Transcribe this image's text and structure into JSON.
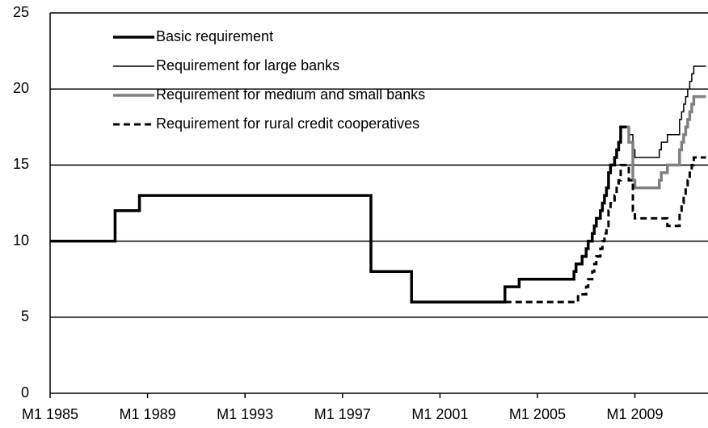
{
  "chart_data": {
    "type": "line",
    "step": true,
    "xlim": [
      "M1 1985",
      "M12 2011"
    ],
    "xticks": [
      "M1 1985",
      "M1 1989",
      "M1 1993",
      "M1 1997",
      "M1 2001",
      "M1 2005",
      "M1 2009"
    ],
    "ylim": [
      0,
      25
    ],
    "yticks": [
      0,
      5,
      10,
      15,
      20,
      25
    ],
    "grid": true,
    "legend": "top-left",
    "series": [
      {
        "name": "Basic requirement",
        "color": "#000000",
        "width": 3.5,
        "dash": "none",
        "x": [
          "M1 1985",
          "M9 1987",
          "M9 1988",
          "M3 1998",
          "M11 1999",
          "M9 2003",
          "M4 2004",
          "M7 2006",
          "M8 2006",
          "M11 2006",
          "M1 2007",
          "M2 2007",
          "M4 2007",
          "M5 2007",
          "M6 2007",
          "M8 2007",
          "M9 2007",
          "M10 2007",
          "M11 2007",
          "M12 2007",
          "M1 2008",
          "M3 2008",
          "M4 2008",
          "M5 2008",
          "M6 2008",
          "M9 2008"
        ],
        "values": [
          10,
          12,
          13,
          8,
          6,
          7,
          7.5,
          8,
          8.5,
          9,
          9.5,
          10,
          10.5,
          11,
          11.5,
          12,
          12.5,
          13,
          13.5,
          14.5,
          15,
          15.5,
          16,
          16.5,
          17.5,
          17.5
        ]
      },
      {
        "name": "Requirement for large banks",
        "color": "#000000",
        "width": 1.5,
        "dash": "none",
        "x": [
          "M9 2008",
          "M10 2008",
          "M12 2008",
          "M1 2009",
          "M1 2010",
          "M2 2010",
          "M5 2010",
          "M11 2010",
          "M12 2010",
          "M1 2011",
          "M2 2011",
          "M3 2011",
          "M4 2011",
          "M5 2011",
          "M6 2011",
          "M12 2011"
        ],
        "values": [
          17.5,
          17,
          16,
          15.5,
          16,
          16.5,
          17,
          18,
          18.5,
          19,
          19.5,
          20,
          20.5,
          21,
          21.5,
          21.5
        ]
      },
      {
        "name": "Requirement for medium and small banks",
        "color": "#808080",
        "width": 3.5,
        "dash": "none",
        "x": [
          "M9 2008",
          "M10 2008",
          "M12 2008",
          "M1 2009",
          "M1 2010",
          "M2 2010",
          "M5 2010",
          "M11 2010",
          "M12 2010",
          "M1 2011",
          "M2 2011",
          "M3 2011",
          "M4 2011",
          "M5 2011",
          "M6 2011",
          "M12 2011"
        ],
        "values": [
          17.5,
          16.5,
          14,
          13.5,
          14,
          14.5,
          15,
          16,
          16.5,
          17,
          17.5,
          18,
          18.5,
          19,
          19.5,
          19.5
        ]
      },
      {
        "name": "Requirement for rural credit cooperatives",
        "color": "#000000",
        "width": 3,
        "dash": "8,5",
        "x": [
          "M9 2003",
          "M9 2006",
          "M1 2007",
          "M2 2007",
          "M4 2007",
          "M5 2007",
          "M6 2007",
          "M8 2007",
          "M9 2007",
          "M10 2007",
          "M11 2007",
          "M12 2007",
          "M1 2008",
          "M3 2008",
          "M4 2008",
          "M5 2008",
          "M6 2008",
          "M10 2008",
          "M12 2008",
          "M1 2009",
          "M5 2010",
          "M11 2010",
          "M12 2010",
          "M1 2011",
          "M2 2011",
          "M3 2011",
          "M4 2011",
          "M5 2011",
          "M6 2011",
          "M12 2011"
        ],
        "values": [
          6,
          6.5,
          7,
          7.5,
          8,
          8.5,
          9,
          9.5,
          10,
          10.5,
          11,
          12,
          12.5,
          13,
          13.5,
          14,
          15,
          14,
          12,
          11.5,
          11,
          12,
          12.5,
          13,
          13.5,
          14,
          14.5,
          15,
          15.5,
          15.5
        ]
      }
    ]
  }
}
